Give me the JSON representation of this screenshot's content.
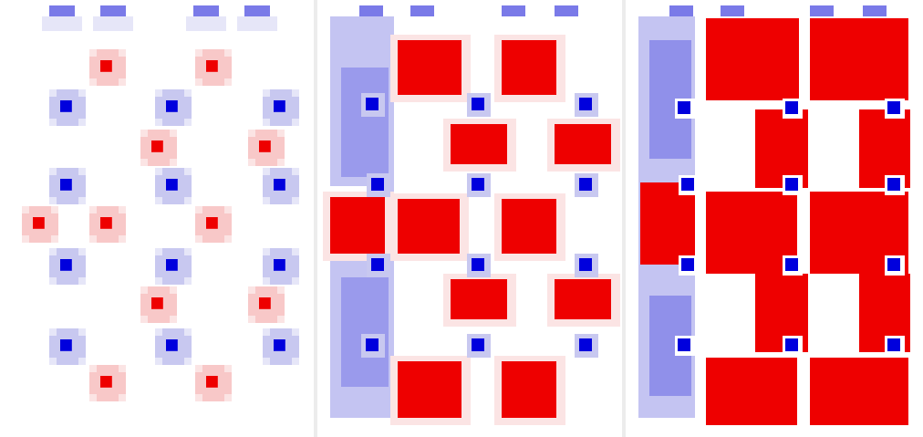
{
  "colors": {
    "background": "#ffffff",
    "strong_red": "#ee0000",
    "strong_blue": "#0000dd",
    "light_red": "#f8c8c8",
    "light_blue": "#c8c8f0",
    "pale_blue": "#e6e6f8",
    "pale_red": "#fbe4e4"
  },
  "panels": [
    {
      "name": "panel-left",
      "stage": "low-intensity"
    },
    {
      "name": "panel-middle",
      "stage": "medium-intensity"
    },
    {
      "name": "panel-right",
      "stage": "high-intensity"
    }
  ]
}
